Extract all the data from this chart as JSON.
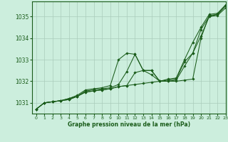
{
  "title": "Graphe pression niveau de la mer (hPa)",
  "background_color": "#cceedd",
  "grid_color": "#aaccbb",
  "line_color": "#1a5c1a",
  "xlim": [
    -0.5,
    23
  ],
  "ylim": [
    1030.5,
    1035.7
  ],
  "yticks": [
    1031,
    1032,
    1033,
    1034,
    1035
  ],
  "xticks": [
    0,
    1,
    2,
    3,
    4,
    5,
    6,
    7,
    8,
    9,
    10,
    11,
    12,
    13,
    14,
    15,
    16,
    17,
    18,
    19,
    20,
    21,
    22,
    23
  ],
  "series": [
    [
      1030.7,
      1031.0,
      1031.05,
      1031.1,
      1031.15,
      1031.3,
      1031.5,
      1031.55,
      1031.6,
      1031.65,
      1031.75,
      1031.8,
      1031.85,
      1031.9,
      1031.95,
      1032.0,
      1032.0,
      1032.0,
      1032.05,
      1032.1,
      1034.0,
      1035.05,
      1035.1,
      1035.5
    ],
    [
      1030.7,
      1031.0,
      1031.05,
      1031.1,
      1031.15,
      1031.3,
      1031.5,
      1031.55,
      1031.6,
      1031.65,
      1031.75,
      1031.8,
      1032.4,
      1032.5,
      1032.3,
      1032.0,
      1032.0,
      1032.05,
      1032.7,
      1033.3,
      1034.1,
      1035.0,
      1035.05,
      1035.4
    ],
    [
      1030.7,
      1031.0,
      1031.05,
      1031.1,
      1031.2,
      1031.3,
      1031.55,
      1031.6,
      1031.65,
      1031.7,
      1031.85,
      1032.45,
      1033.25,
      1032.5,
      1032.5,
      1032.0,
      1032.05,
      1032.1,
      1032.9,
      1033.3,
      1034.4,
      1035.0,
      1035.1,
      1035.5
    ],
    [
      1030.7,
      1031.0,
      1031.05,
      1031.1,
      1031.2,
      1031.35,
      1031.6,
      1031.65,
      1031.7,
      1031.8,
      1033.0,
      1033.3,
      1033.25,
      1032.5,
      1032.5,
      1032.0,
      1032.1,
      1032.15,
      1033.0,
      1033.8,
      1034.5,
      1035.1,
      1035.15,
      1035.55
    ]
  ]
}
